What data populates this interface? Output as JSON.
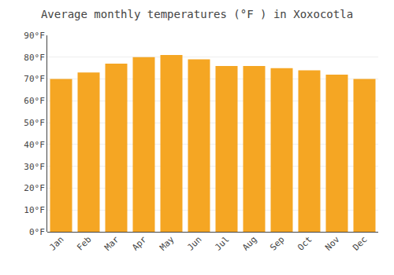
{
  "chart_data": {
    "type": "bar",
    "title": "Average monthly temperatures (°F ) in Xoxocotla",
    "categories": [
      "Jan",
      "Feb",
      "Mar",
      "Apr",
      "May",
      "Jun",
      "Jul",
      "Aug",
      "Sep",
      "Oct",
      "Nov",
      "Dec"
    ],
    "values": [
      70,
      73,
      77,
      80,
      81,
      79,
      76,
      76,
      75,
      74,
      72,
      70
    ],
    "color": "#F5A623",
    "ylim": [
      0,
      90
    ],
    "yticks": [
      {
        "value": 0,
        "label": "0°F"
      },
      {
        "value": 10,
        "label": "10°F"
      },
      {
        "value": 20,
        "label": "20°F"
      },
      {
        "value": 30,
        "label": "30°F"
      },
      {
        "value": 40,
        "label": "40°F"
      },
      {
        "value": 50,
        "label": "50°F"
      },
      {
        "value": 60,
        "label": "60°F"
      },
      {
        "value": 70,
        "label": "70°F"
      },
      {
        "value": 80,
        "label": "80°F"
      },
      {
        "value": 90,
        "label": "90°F"
      }
    ],
    "grid": true
  }
}
